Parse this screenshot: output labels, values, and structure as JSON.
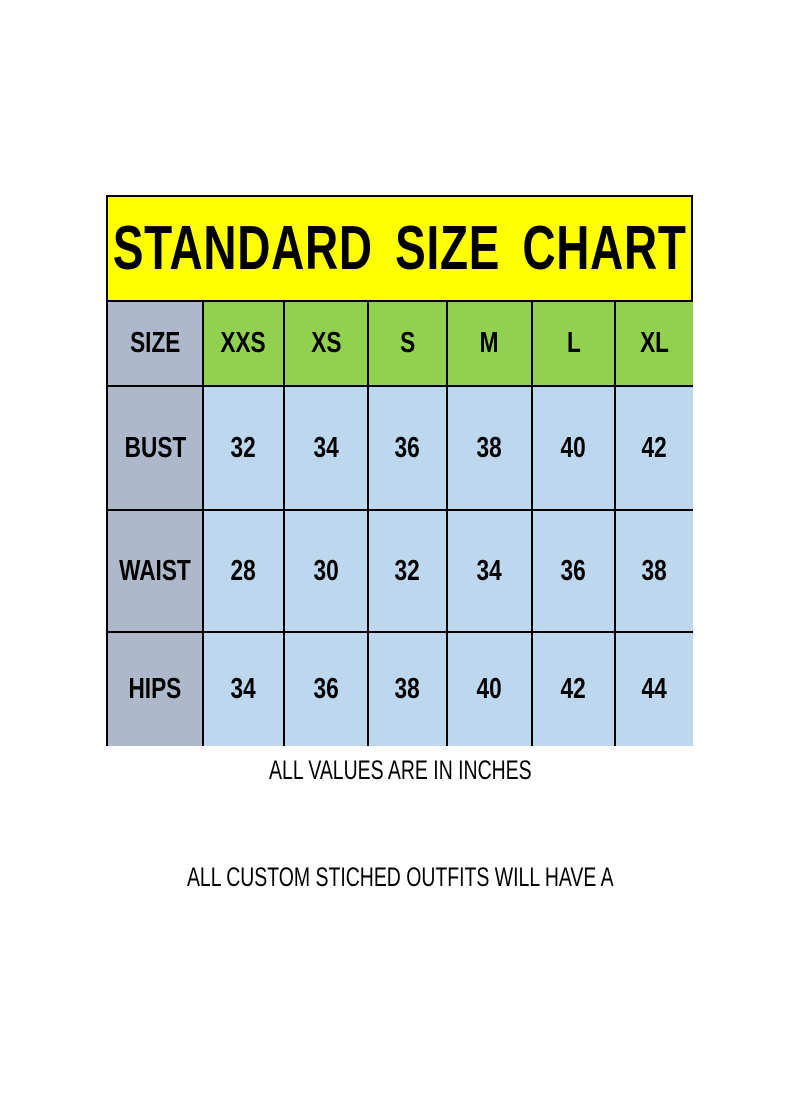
{
  "title": "STANDARD  SIZE  CHART",
  "header_label": "SIZE",
  "sizes": [
    "XXS",
    "XS",
    "S",
    "M",
    "L",
    "XL"
  ],
  "rows": [
    {
      "label": "BUST",
      "values": [
        32,
        34,
        36,
        38,
        40,
        42
      ]
    },
    {
      "label": "WAIST",
      "values": [
        28,
        30,
        32,
        34,
        36,
        38
      ]
    },
    {
      "label": "HIPS",
      "values": [
        34,
        36,
        38,
        40,
        42,
        44
      ]
    }
  ],
  "note_units": "ALL VALUES ARE IN INCHES",
  "note_custom": "ALL CUSTOM STICHED OUTFITS WILL HAVE A",
  "colors": {
    "title_bg": "#ffff00",
    "size_header_bg": "#92d050",
    "row_label_bg": "#adb9ca",
    "value_bg": "#bdd7ee"
  }
}
